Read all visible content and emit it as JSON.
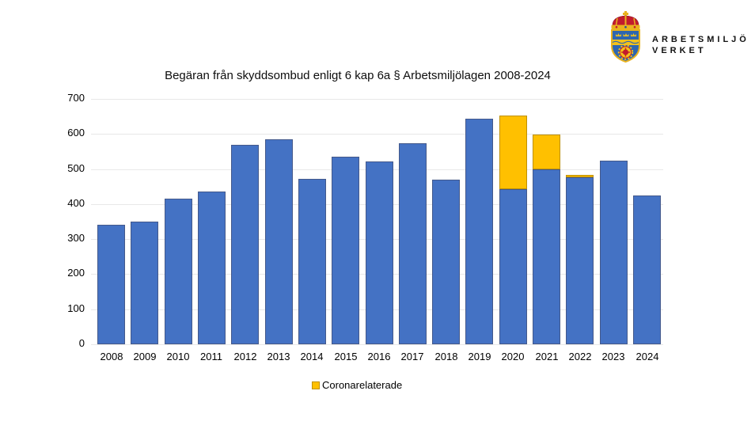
{
  "logo": {
    "line1": "ARBETSMILJÖ",
    "line2": "VERKET",
    "emblem_icon": "swedish-coat-of-arms",
    "colors": {
      "gold": "#E9B31E",
      "red": "#C21B2D",
      "blue": "#2E66B0"
    }
  },
  "chart_data": {
    "type": "bar",
    "stacked": true,
    "title": "Begäran från skyddsombud enligt 6 kap 6a § Arbetsmiljölagen 2008-2024",
    "xlabel": "",
    "ylabel": "",
    "categories": [
      "2008",
      "2009",
      "2010",
      "2011",
      "2012",
      "2013",
      "2014",
      "2015",
      "2016",
      "2017",
      "2018",
      "2019",
      "2020",
      "2021",
      "2022",
      "2023",
      "2024"
    ],
    "series": [
      {
        "name": "",
        "color": "#4472C4",
        "border_color": "#44598b",
        "values": [
          340,
          350,
          416,
          436,
          568,
          584,
          472,
          536,
          522,
          573,
          470,
          643,
          443,
          500,
          477,
          524,
          424
        ]
      },
      {
        "name": "Coronarelaterade",
        "color": "#FFC000",
        "border_color": "#BF9000",
        "values": [
          0,
          0,
          0,
          0,
          0,
          0,
          0,
          0,
          0,
          0,
          0,
          0,
          209,
          100,
          7,
          0,
          0
        ]
      }
    ],
    "ylim": [
      0,
      700
    ],
    "yticks": [
      0,
      100,
      200,
      300,
      400,
      500,
      600,
      700
    ],
    "grid": "horizontal",
    "gridline_color": "#E8E8E8",
    "legend": {
      "position": "bottom",
      "entries": [
        {
          "label": "Coronarelaterade",
          "color": "#FFC000",
          "border_color": "#BF9000"
        }
      ]
    }
  }
}
